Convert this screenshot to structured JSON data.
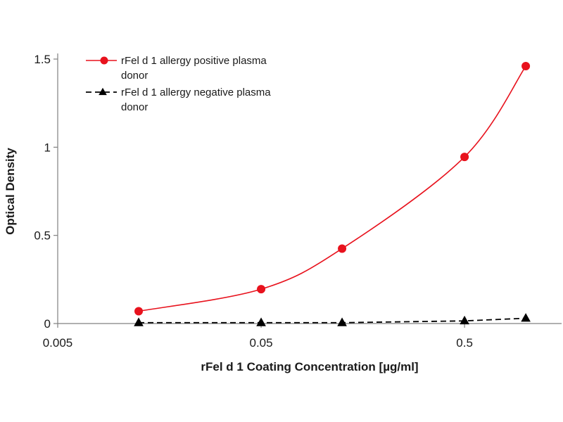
{
  "chart_data": {
    "type": "line",
    "xlabel": "rFel d 1 Coating Concentration [µg/ml]",
    "ylabel": "Optical Density",
    "x_scale": "log",
    "xlim": [
      0.005,
      1.5
    ],
    "ylim": [
      0,
      1.5
    ],
    "x_ticks": [
      "0.005",
      "0.05",
      "0.5"
    ],
    "y_ticks": [
      "0",
      "0.5",
      "1",
      "1.5"
    ],
    "grid": false,
    "legend_position": "top-left",
    "x": [
      0.0125,
      0.05,
      0.125,
      0.5,
      1.0
    ],
    "series": [
      {
        "name": "rFel d 1 allergy positive plasma donor",
        "legend_lines": [
          "rFel d 1 allergy positive plasma",
          "donor"
        ],
        "values": [
          0.07,
          0.195,
          0.425,
          0.945,
          1.46
        ],
        "color": "#e8121d",
        "marker": "circle",
        "line": "solid-smooth"
      },
      {
        "name": "rFel d 1 allergy negative plasma donor",
        "legend_lines": [
          "rFel d 1 allergy negative plasma",
          "donor"
        ],
        "values": [
          0.005,
          0.005,
          0.005,
          0.015,
          0.03
        ],
        "color": "#000000",
        "marker": "triangle",
        "line": "dashed"
      }
    ]
  }
}
